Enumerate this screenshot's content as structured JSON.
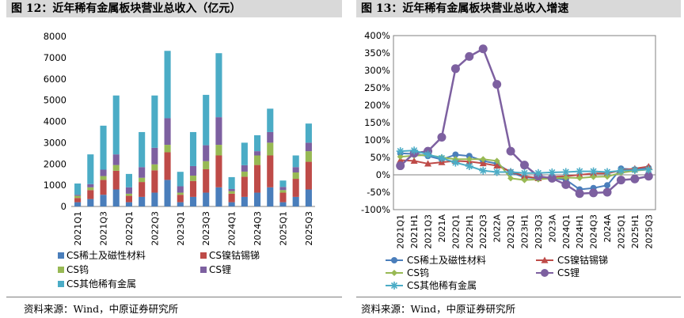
{
  "left": {
    "title": "图 12：近年稀有金属板块营业总收入（亿元）",
    "source": "资料来源：Wind，中原证券研究所"
  },
  "right": {
    "title": "图 13：近年稀有金属板块营业总收入增速",
    "source": "资料来源：Wind，中原证券研究所"
  },
  "chart_data": [
    {
      "type": "bar",
      "stacked": true,
      "ylim": [
        0,
        8000
      ],
      "yticks": [
        "0",
        "1000",
        "2000",
        "3000",
        "4000",
        "5000",
        "6000",
        "7000",
        "8000"
      ],
      "categories": [
        "2021Q1",
        "2021H1",
        "2021Q3",
        "2021A",
        "2022Q1",
        "2022H1",
        "2022Q3",
        "2022A",
        "2023Q1",
        "2023H1",
        "2023Q3",
        "2023A",
        "2024Q1",
        "2024H1",
        "2024Q3",
        "2024A",
        "2025Q1",
        "2025H1",
        "2025Q3"
      ],
      "x_tick_labels": [
        "2021Q1",
        "2021Q3",
        "2022Q1",
        "2022Q3",
        "2023Q1",
        "2023Q3",
        "2024Q1",
        "2024Q3",
        "2025Q1",
        "2025Q3"
      ],
      "series": [
        {
          "name": "CS稀土及磁性材料",
          "color": "#4a7ebb",
          "values": [
            200,
            350,
            550,
            800,
            200,
            450,
            650,
            1250,
            200,
            450,
            650,
            900,
            200,
            450,
            650,
            900,
            200,
            450,
            800
          ]
        },
        {
          "name": "CS镍钴锡锑",
          "color": "#be4b48",
          "values": [
            200,
            420,
            700,
            880,
            300,
            700,
            1050,
            1300,
            350,
            750,
            1100,
            1500,
            400,
            950,
            1300,
            1500,
            450,
            850,
            1300
          ]
        },
        {
          "name": "CS钨",
          "color": "#98b954",
          "values": [
            100,
            130,
            180,
            270,
            100,
            200,
            280,
            350,
            100,
            250,
            380,
            500,
            120,
            240,
            450,
            600,
            120,
            300,
            500
          ]
        },
        {
          "name": "CS锂",
          "color": "#7d60a0",
          "values": [
            50,
            150,
            300,
            500,
            300,
            500,
            780,
            1250,
            300,
            450,
            750,
            1300,
            100,
            300,
            200,
            500,
            150,
            250,
            400
          ]
        },
        {
          "name": "CS其他稀有金属",
          "color": "#4bacc6",
          "values": [
            530,
            1400,
            2070,
            2770,
            630,
            1650,
            2460,
            3170,
            680,
            1600,
            2370,
            3010,
            560,
            1060,
            750,
            1100,
            300,
            550,
            900
          ]
        }
      ]
    },
    {
      "type": "line",
      "ylim": [
        -1.0,
        4.0
      ],
      "yticks": [
        "-100%",
        "-50%",
        "0%",
        "50%",
        "100%",
        "150%",
        "200%",
        "250%",
        "300%",
        "350%",
        "400%"
      ],
      "categories": [
        "2021Q1",
        "2021H1",
        "2021Q3",
        "2021A",
        "2022Q1",
        "2022H1",
        "2022Q3",
        "2022A",
        "2023Q1",
        "2023H1",
        "2023Q3",
        "2023A",
        "2024Q1",
        "2024H1",
        "2024Q3",
        "2024A",
        "2025Q1",
        "2025H1",
        "2025Q3"
      ],
      "series": [
        {
          "name": "CS稀土及磁性材料",
          "color": "#4a7ebb",
          "marker": "circle",
          "values": [
            0.62,
            0.6,
            0.54,
            0.44,
            0.58,
            0.54,
            0.4,
            0.32,
            0.07,
            -0.07,
            -0.1,
            -0.1,
            -0.14,
            -0.42,
            -0.38,
            -0.3,
            0.18,
            0.15,
            0.2
          ]
        },
        {
          "name": "CS镍钴锡锑",
          "color": "#be4b48",
          "marker": "triangle",
          "values": [
            0.42,
            0.4,
            0.32,
            0.36,
            0.4,
            0.38,
            0.33,
            0.26,
            0.1,
            -0.04,
            -0.1,
            -0.06,
            -0.04,
            0.0,
            0.04,
            0.04,
            0.13,
            0.18,
            0.24
          ]
        },
        {
          "name": "CS钨",
          "color": "#98b954",
          "marker": "diamond",
          "values": [
            0.52,
            0.55,
            0.57,
            0.5,
            0.45,
            0.45,
            0.45,
            0.4,
            -0.1,
            -0.15,
            -0.13,
            -0.1,
            -0.08,
            -0.09,
            -0.06,
            -0.05,
            0.06,
            0.12,
            0.15
          ]
        },
        {
          "name": "CS锂",
          "color": "#7d60a0",
          "marker": "circle",
          "values": [
            0.26,
            0.62,
            0.68,
            1.08,
            3.05,
            3.4,
            3.62,
            2.6,
            0.68,
            0.28,
            -0.04,
            -0.1,
            -0.28,
            -0.54,
            -0.52,
            -0.5,
            -0.15,
            -0.12,
            -0.04
          ]
        },
        {
          "name": "CS其他稀有金属",
          "color": "#4bacc6",
          "marker": "star",
          "values": [
            0.68,
            0.7,
            0.58,
            0.48,
            0.35,
            0.25,
            0.12,
            0.08,
            0.08,
            0.05,
            0.05,
            0.07,
            0.08,
            0.1,
            0.1,
            0.08,
            0.12,
            0.14,
            0.15
          ]
        }
      ]
    }
  ]
}
